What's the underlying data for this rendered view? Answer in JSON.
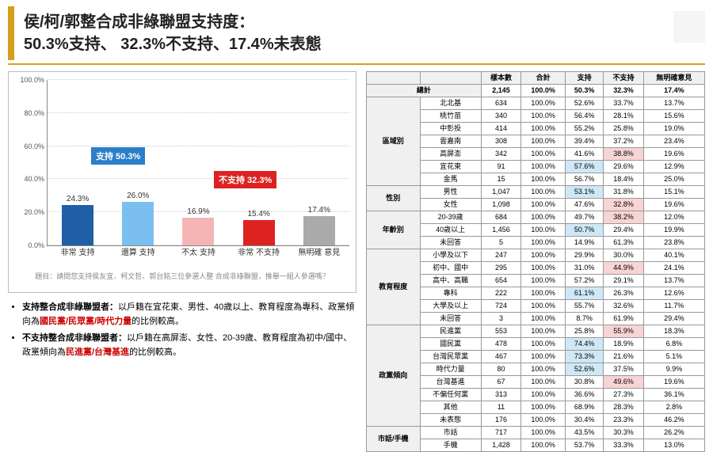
{
  "title1": "侯/柯/郭整合成非綠聯盟支持度：",
  "title2": "50.3%支持、 32.3%不支持、17.4%未表態",
  "chart": {
    "ymax": 100,
    "ytick": 20,
    "bars": [
      {
        "label": "非常\n支持",
        "value": 24.3,
        "color": "#1f5fa8"
      },
      {
        "label": "還算\n支持",
        "value": 26.0,
        "color": "#7abff0"
      },
      {
        "label": "不太\n支持",
        "value": 16.9,
        "color": "#f5b5b5"
      },
      {
        "label": "非常\n不支持",
        "value": 15.4,
        "color": "#d22"
      },
      {
        "label": "無明確\n意見",
        "value": 17.4,
        "color": "#aaa"
      }
    ],
    "group_support": {
      "text": "支持 50.3%",
      "color": "#2b7fc9"
    },
    "group_oppose": {
      "text": "不支持 32.3%",
      "color": "#d22"
    },
    "caption": "題目：請問您支持侯友宜、柯文哲、郭台銘三位參選人整\n合成非綠聯盟，推舉一組人參選嗎？"
  },
  "notes": [
    {
      "pre": "支持整合成非綠聯盟者：",
      "body": "以戶籍在宜花東、男性、40歲以上、教育程度為專科、政黨傾向為",
      "hl": "國民黨/民眾黨/時代力量",
      "post": "的比例較高。"
    },
    {
      "pre": "不支持整合成非綠聯盟者：",
      "body": "以戶籍在高屏澎、女性、20-39歲、教育程度為初中/國中、政黨傾向為",
      "hl": "民進黨/台灣基進",
      "post": "的比例較高。"
    }
  ],
  "table": {
    "headers": [
      "",
      "",
      "樣本數",
      "合計",
      "支持",
      "不支持",
      "無明確意見"
    ],
    "total": [
      "總計",
      "2,145",
      "100.0%",
      "50.3%",
      "32.3%",
      "17.4%"
    ],
    "groups": [
      {
        "name": "區域別",
        "rows": [
          [
            "北北基",
            "634",
            "100.0%",
            "52.6%",
            "33.7%",
            "13.7%",
            ""
          ],
          [
            "桃竹苗",
            "340",
            "100.0%",
            "56.4%",
            "28.1%",
            "15.6%",
            ""
          ],
          [
            "中彰投",
            "414",
            "100.0%",
            "55.2%",
            "25.8%",
            "19.0%",
            ""
          ],
          [
            "雲嘉南",
            "308",
            "100.0%",
            "39.4%",
            "37.2%",
            "23.4%",
            ""
          ],
          [
            "高屏澎",
            "342",
            "100.0%",
            "41.6%",
            "38.8%",
            "19.6%",
            "p4"
          ],
          [
            "宜花東",
            "91",
            "100.0%",
            "57.6%",
            "29.6%",
            "12.9%",
            "b3"
          ],
          [
            "金馬",
            "15",
            "100.0%",
            "56.7%",
            "18.4%",
            "25.0%",
            ""
          ]
        ]
      },
      {
        "name": "性別",
        "rows": [
          [
            "男性",
            "1,047",
            "100.0%",
            "53.1%",
            "31.8%",
            "15.1%",
            "b3"
          ],
          [
            "女性",
            "1,098",
            "100.0%",
            "47.6%",
            "32.8%",
            "19.6%",
            "p4"
          ]
        ]
      },
      {
        "name": "年齡別",
        "rows": [
          [
            "20-39歲",
            "684",
            "100.0%",
            "49.7%",
            "38.2%",
            "12.0%",
            "p4"
          ],
          [
            "40歲以上",
            "1,456",
            "100.0%",
            "50.7%",
            "29.4%",
            "19.9%",
            "b3"
          ],
          [
            "未回答",
            "5",
            "100.0%",
            "14.9%",
            "61.3%",
            "23.8%",
            ""
          ]
        ]
      },
      {
        "name": "教育程度",
        "rows": [
          [
            "小學及以下",
            "247",
            "100.0%",
            "29.9%",
            "30.0%",
            "40.1%",
            ""
          ],
          [
            "初中、國中",
            "295",
            "100.0%",
            "31.0%",
            "44.9%",
            "24.1%",
            "p4"
          ],
          [
            "高中、高職",
            "654",
            "100.0%",
            "57.2%",
            "29.1%",
            "13.7%",
            ""
          ],
          [
            "專科",
            "222",
            "100.0%",
            "61.1%",
            "26.3%",
            "12.6%",
            "b3"
          ],
          [
            "大學及以上",
            "724",
            "100.0%",
            "55.7%",
            "32.6%",
            "11.7%",
            ""
          ],
          [
            "未回答",
            "3",
            "100.0%",
            "8.7%",
            "61.9%",
            "29.4%",
            ""
          ]
        ]
      },
      {
        "name": "政黨傾向",
        "rows": [
          [
            "民進黨",
            "553",
            "100.0%",
            "25.8%",
            "55.9%",
            "18.3%",
            "p4"
          ],
          [
            "國民黨",
            "478",
            "100.0%",
            "74.4%",
            "18.9%",
            "6.8%",
            "b3"
          ],
          [
            "台灣民眾黨",
            "467",
            "100.0%",
            "73.3%",
            "21.6%",
            "5.1%",
            "b3"
          ],
          [
            "時代力量",
            "80",
            "100.0%",
            "52.6%",
            "37.5%",
            "9.9%",
            "b3"
          ],
          [
            "台灣基進",
            "67",
            "100.0%",
            "30.8%",
            "49.6%",
            "19.6%",
            "p4"
          ],
          [
            "不偏任何黨",
            "313",
            "100.0%",
            "36.6%",
            "27.3%",
            "36.1%",
            ""
          ],
          [
            "其他",
            "11",
            "100.0%",
            "68.9%",
            "28.3%",
            "2.8%",
            ""
          ],
          [
            "未表態",
            "176",
            "100.0%",
            "30.4%",
            "23.3%",
            "46.2%",
            ""
          ]
        ]
      },
      {
        "name": "市話/手機",
        "rows": [
          [
            "市話",
            "717",
            "100.0%",
            "43.5%",
            "30.3%",
            "26.2%",
            ""
          ],
          [
            "手機",
            "1,428",
            "100.0%",
            "53.7%",
            "33.3%",
            "13.0%",
            ""
          ]
        ]
      }
    ]
  }
}
